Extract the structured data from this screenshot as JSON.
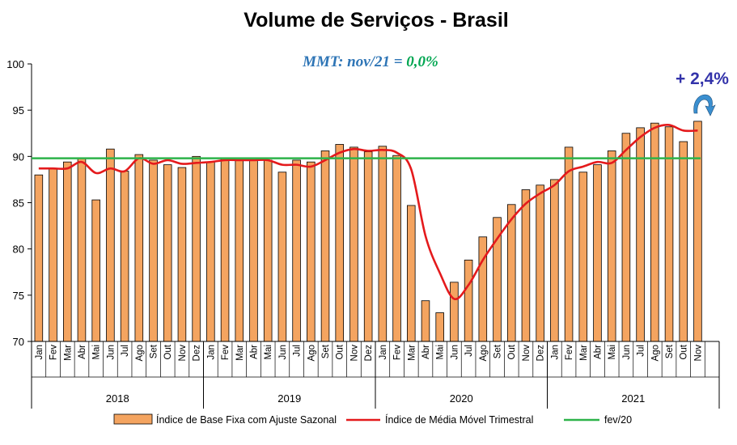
{
  "chart_data": {
    "type": "bar",
    "title": "Volume de Serviços - Brasil",
    "subtitle": {
      "prefix": "MMT: nov/21 = ",
      "value": "0,0%",
      "prefix_color": "#2e75b6",
      "value_color": "#00a651"
    },
    "annotation": "+ 2,4%",
    "annotation_color": "#3333aa",
    "ylim": [
      70,
      100
    ],
    "yticks": [
      70,
      75,
      80,
      85,
      90,
      95,
      100
    ],
    "grid": false,
    "years": [
      "2018",
      "2019",
      "2020",
      "2021"
    ],
    "month_labels": [
      "Jan",
      "Fev",
      "Mar",
      "Abr",
      "Mai",
      "Jun",
      "Jul",
      "Ago",
      "Set",
      "Out",
      "Nov",
      "Dez"
    ],
    "categories": [
      "Jan/2018",
      "Fev/2018",
      "Mar/2018",
      "Abr/2018",
      "Mai/2018",
      "Jun/2018",
      "Jul/2018",
      "Ago/2018",
      "Set/2018",
      "Out/2018",
      "Nov/2018",
      "Dez/2018",
      "Jan/2019",
      "Fev/2019",
      "Mar/2019",
      "Abr/2019",
      "Mai/2019",
      "Jun/2019",
      "Jul/2019",
      "Ago/2019",
      "Set/2019",
      "Out/2019",
      "Nov/2019",
      "Dez/2019",
      "Jan/2020",
      "Fev/2020",
      "Mar/2020",
      "Abr/2020",
      "Mai/2020",
      "Jun/2020",
      "Jul/2020",
      "Ago/2020",
      "Set/2020",
      "Out/2020",
      "Nov/2020",
      "Dez/2020",
      "Jan/2021",
      "Fev/2021",
      "Mar/2021",
      "Abr/2021",
      "Mai/2021",
      "Jun/2021",
      "Jul/2021",
      "Ago/2021",
      "Set/2021",
      "Out/2021",
      "Nov/2021"
    ],
    "series": [
      {
        "name": "Índice de Base Fixa com Ajuste Sazonal",
        "type": "bar",
        "color": "#f4a460",
        "values": [
          88.0,
          88.7,
          89.4,
          89.8,
          85.3,
          90.8,
          88.4,
          90.2,
          89.6,
          89.1,
          88.8,
          90.0,
          89.4,
          89.8,
          89.6,
          89.6,
          89.6,
          88.3,
          89.6,
          89.4,
          90.6,
          91.3,
          91.0,
          90.5,
          91.1,
          90.1,
          84.7,
          74.4,
          73.1,
          76.4,
          78.8,
          81.3,
          83.4,
          84.8,
          86.4,
          86.9,
          87.5,
          91.0,
          88.3,
          89.1,
          90.6,
          92.5,
          93.1,
          93.6,
          93.2,
          91.6,
          93.8
        ]
      },
      {
        "name": "Índice de Média Móvel Trimestral",
        "type": "line",
        "color": "#e41a1c",
        "values": [
          88.7,
          88.7,
          88.7,
          89.4,
          88.2,
          88.7,
          88.4,
          89.8,
          89.2,
          89.6,
          89.2,
          89.3,
          89.4,
          89.6,
          89.6,
          89.6,
          89.6,
          89.1,
          89.1,
          88.9,
          89.6,
          90.4,
          90.8,
          90.6,
          90.7,
          90.4,
          88.6,
          81.4,
          77.4,
          74.6,
          76.1,
          78.8,
          81.1,
          83.2,
          84.9,
          86.0,
          86.9,
          88.4,
          88.9,
          89.4,
          89.3,
          90.7,
          92.1,
          93.1,
          93.4,
          92.8,
          92.8
        ]
      },
      {
        "name": "fev/20",
        "type": "line",
        "color": "#2db34a",
        "value": 89.8
      }
    ]
  }
}
